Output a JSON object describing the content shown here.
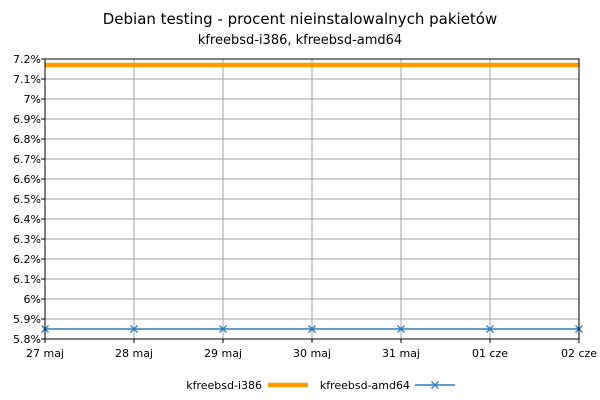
{
  "chart_data": {
    "type": "line",
    "title": "Debian testing - procent nieinstalowalnych pakietów",
    "subtitle": "kfreebsd-i386, kfreebsd-amd64",
    "xlabel": "",
    "ylabel": "",
    "categories": [
      "27 maj",
      "28 maj",
      "29 maj",
      "30 maj",
      "31 maj",
      "01 cze",
      "02 cze"
    ],
    "ylim": [
      5.8,
      7.2
    ],
    "yticks": [
      "5.8%",
      "5.9%",
      "6%",
      "6.1%",
      "6.2%",
      "6.3%",
      "6.4%",
      "6.5%",
      "6.6%",
      "6.7%",
      "6.8%",
      "6.9%",
      "7%",
      "7.1%",
      "7.2%"
    ],
    "grid": true,
    "legend": "bottom-center",
    "series": [
      {
        "name": "kfreebsd-i386",
        "color": "#ff9900",
        "marker": "none",
        "values": [
          7.17,
          7.17,
          7.17,
          7.17,
          7.17,
          7.17,
          7.17
        ]
      },
      {
        "name": "kfreebsd-amd64",
        "color": "#2a7fbf",
        "marker": "x",
        "values": [
          5.85,
          5.85,
          5.85,
          5.85,
          5.85,
          5.85,
          5.85
        ]
      }
    ]
  }
}
